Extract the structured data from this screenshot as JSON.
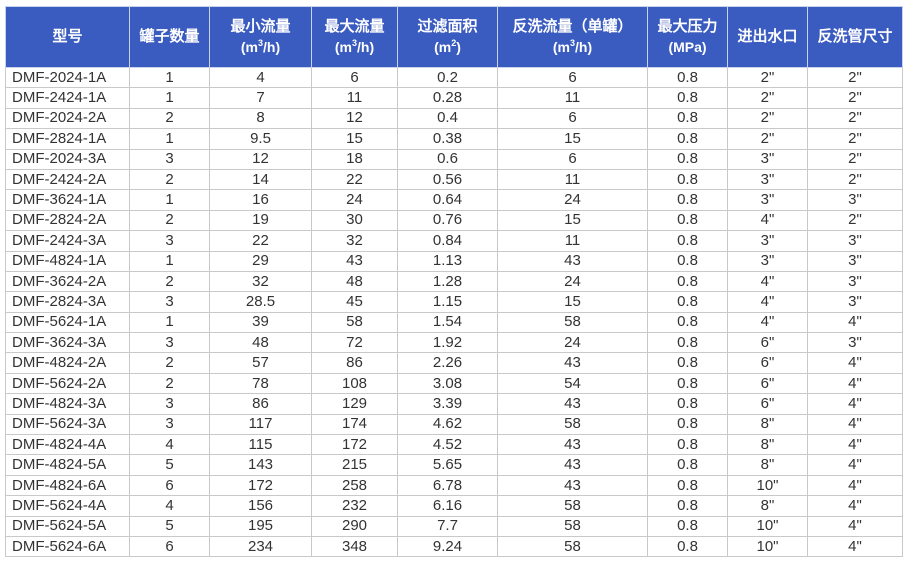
{
  "header_color": "#3a5bbf",
  "headers": [
    {
      "line1": "型号"
    },
    {
      "line1": "罐子数量"
    },
    {
      "line1": "最小流量",
      "pre": "(m",
      "sup": "3",
      "post": "/h)"
    },
    {
      "line1": "最大流量",
      "pre": "(m",
      "sup": "3",
      "post": "/h)"
    },
    {
      "line1": "过滤面积",
      "pre": "(m",
      "sup": "2",
      "post": ")"
    },
    {
      "line1": "反洗流量（单罐）",
      "pre": "(m",
      "sup": "3",
      "post": "/h)"
    },
    {
      "line1": "最大压力",
      "pre": "(MPa)",
      "sup": "",
      "post": ""
    },
    {
      "line1": "进出水口"
    },
    {
      "line1": "反洗管尺寸"
    }
  ],
  "rows": [
    [
      "DMF-2024-1A",
      "1",
      "4",
      "6",
      "0.2",
      "6",
      "0.8",
      "2\"",
      "2\""
    ],
    [
      "DMF-2424-1A",
      "1",
      "7",
      "11",
      "0.28",
      "11",
      "0.8",
      "2\"",
      "2\""
    ],
    [
      "DMF-2024-2A",
      "2",
      "8",
      "12",
      "0.4",
      "6",
      "0.8",
      "2\"",
      "2\""
    ],
    [
      "DMF-2824-1A",
      "1",
      "9.5",
      "15",
      "0.38",
      "15",
      "0.8",
      "2\"",
      "2\""
    ],
    [
      "DMF-2024-3A",
      "3",
      "12",
      "18",
      "0.6",
      "6",
      "0.8",
      "3\"",
      "2\""
    ],
    [
      "DMF-2424-2A",
      "2",
      "14",
      "22",
      "0.56",
      "11",
      "0.8",
      "3\"",
      "2\""
    ],
    [
      "DMF-3624-1A",
      "1",
      "16",
      "24",
      "0.64",
      "24",
      "0.8",
      "3\"",
      "3\""
    ],
    [
      "DMF-2824-2A",
      "2",
      "19",
      "30",
      "0.76",
      "15",
      "0.8",
      "4\"",
      "2\""
    ],
    [
      "DMF-2424-3A",
      "3",
      "22",
      "32",
      "0.84",
      "11",
      "0.8",
      "3\"",
      "3\""
    ],
    [
      "DMF-4824-1A",
      "1",
      "29",
      "43",
      "1.13",
      "43",
      "0.8",
      "3\"",
      "3\""
    ],
    [
      "DMF-3624-2A",
      "2",
      "32",
      "48",
      "1.28",
      "24",
      "0.8",
      "4\"",
      "3\""
    ],
    [
      "DMF-2824-3A",
      "3",
      "28.5",
      "45",
      "1.15",
      "15",
      "0.8",
      "4\"",
      "3\""
    ],
    [
      "DMF-5624-1A",
      "1",
      "39",
      "58",
      "1.54",
      "58",
      "0.8",
      "4\"",
      "4\""
    ],
    [
      "DMF-3624-3A",
      "3",
      "48",
      "72",
      "1.92",
      "24",
      "0.8",
      "6\"",
      "3\""
    ],
    [
      "DMF-4824-2A",
      "2",
      "57",
      "86",
      "2.26",
      "43",
      "0.8",
      "6\"",
      "4\""
    ],
    [
      "DMF-5624-2A",
      "2",
      "78",
      "108",
      "3.08",
      "54",
      "0.8",
      "6\"",
      "4\""
    ],
    [
      "DMF-4824-3A",
      "3",
      "86",
      "129",
      "3.39",
      "43",
      "0.8",
      "6\"",
      "4\""
    ],
    [
      "DMF-5624-3A",
      "3",
      "117",
      "174",
      "4.62",
      "58",
      "0.8",
      "8\"",
      "4\""
    ],
    [
      "DMF-4824-4A",
      "4",
      "115",
      "172",
      "4.52",
      "43",
      "0.8",
      "8\"",
      "4\""
    ],
    [
      "DMF-4824-5A",
      "5",
      "143",
      "215",
      "5.65",
      "43",
      "0.8",
      "8\"",
      "4\""
    ],
    [
      "DMF-4824-6A",
      "6",
      "172",
      "258",
      "6.78",
      "43",
      "0.8",
      "10\"",
      "4\""
    ],
    [
      "DMF-5624-4A",
      "4",
      "156",
      "232",
      "6.16",
      "58",
      "0.8",
      "8\"",
      "4\""
    ],
    [
      "DMF-5624-5A",
      "5",
      "195",
      "290",
      "7.7",
      "58",
      "0.8",
      "10\"",
      "4\""
    ],
    [
      "DMF-5624-6A",
      "6",
      "234",
      "348",
      "9.24",
      "58",
      "0.8",
      "10\"",
      "4\""
    ]
  ]
}
